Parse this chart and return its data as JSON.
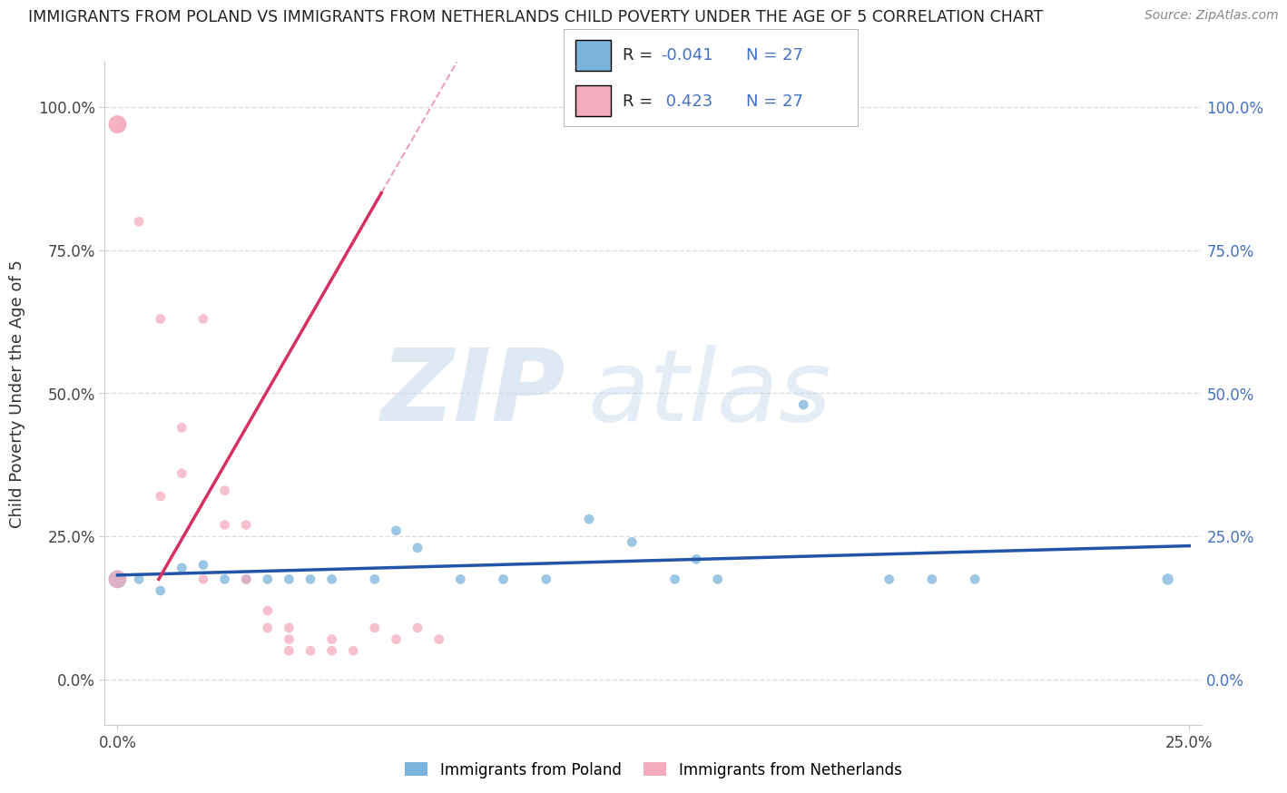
{
  "title": "IMMIGRANTS FROM POLAND VS IMMIGRANTS FROM NETHERLANDS CHILD POVERTY UNDER THE AGE OF 5 CORRELATION CHART",
  "source": "Source: ZipAtlas.com",
  "ylabel": "Child Poverty Under the Age of 5",
  "legend_label_blue": "Immigrants from Poland",
  "legend_label_pink": "Immigrants from Netherlands",
  "r_blue": -0.041,
  "n_blue": 27,
  "r_pink": 0.423,
  "n_pink": 27,
  "xmin": 0.0,
  "xmax": 0.25,
  "ymin": -0.08,
  "ymax": 1.08,
  "blue_color": "#7ab3db",
  "pink_color": "#f5abbe",
  "blue_line_color": "#2255aa",
  "pink_line_color": "#d63060",
  "blue_scatter": [
    [
      0.0,
      0.175
    ],
    [
      0.005,
      0.175
    ],
    [
      0.01,
      0.155
    ],
    [
      0.015,
      0.195
    ],
    [
      0.02,
      0.2
    ],
    [
      0.025,
      0.175
    ],
    [
      0.03,
      0.175
    ],
    [
      0.035,
      0.175
    ],
    [
      0.04,
      0.175
    ],
    [
      0.045,
      0.175
    ],
    [
      0.05,
      0.175
    ],
    [
      0.06,
      0.175
    ],
    [
      0.065,
      0.26
    ],
    [
      0.07,
      0.23
    ],
    [
      0.08,
      0.175
    ],
    [
      0.09,
      0.175
    ],
    [
      0.1,
      0.175
    ],
    [
      0.11,
      0.28
    ],
    [
      0.12,
      0.24
    ],
    [
      0.13,
      0.175
    ],
    [
      0.135,
      0.21
    ],
    [
      0.14,
      0.175
    ],
    [
      0.16,
      0.48
    ],
    [
      0.18,
      0.175
    ],
    [
      0.19,
      0.175
    ],
    [
      0.2,
      0.175
    ],
    [
      0.245,
      0.175
    ]
  ],
  "pink_scatter": [
    [
      0.0,
      0.175
    ],
    [
      0.0,
      0.97
    ],
    [
      0.0,
      0.97
    ],
    [
      0.005,
      0.8
    ],
    [
      0.01,
      0.63
    ],
    [
      0.01,
      0.32
    ],
    [
      0.015,
      0.44
    ],
    [
      0.015,
      0.36
    ],
    [
      0.02,
      0.63
    ],
    [
      0.02,
      0.175
    ],
    [
      0.025,
      0.33
    ],
    [
      0.025,
      0.27
    ],
    [
      0.03,
      0.27
    ],
    [
      0.03,
      0.175
    ],
    [
      0.035,
      0.12
    ],
    [
      0.035,
      0.09
    ],
    [
      0.04,
      0.09
    ],
    [
      0.04,
      0.07
    ],
    [
      0.04,
      0.05
    ],
    [
      0.045,
      0.05
    ],
    [
      0.05,
      0.07
    ],
    [
      0.05,
      0.05
    ],
    [
      0.055,
      0.05
    ],
    [
      0.06,
      0.09
    ],
    [
      0.065,
      0.07
    ],
    [
      0.07,
      0.09
    ],
    [
      0.075,
      0.07
    ]
  ],
  "blue_sizes": [
    200,
    60,
    60,
    60,
    60,
    60,
    60,
    60,
    60,
    60,
    60,
    60,
    60,
    60,
    60,
    60,
    60,
    60,
    60,
    60,
    60,
    60,
    60,
    60,
    60,
    60,
    80
  ],
  "pink_sizes": [
    200,
    200,
    200,
    60,
    60,
    60,
    60,
    60,
    60,
    60,
    60,
    60,
    60,
    60,
    60,
    60,
    60,
    60,
    60,
    60,
    60,
    60,
    60,
    60,
    60,
    60,
    60
  ],
  "ytick_labels": [
    "0.0%",
    "25.0%",
    "50.0%",
    "75.0%",
    "100.0%"
  ],
  "ytick_values": [
    0.0,
    0.25,
    0.5,
    0.75,
    1.0
  ],
  "xtick_labels": [
    "0.0%",
    "25.0%"
  ],
  "xtick_values": [
    0.0,
    0.25
  ],
  "grid_color": "#dddddd",
  "background_color": "#ffffff"
}
